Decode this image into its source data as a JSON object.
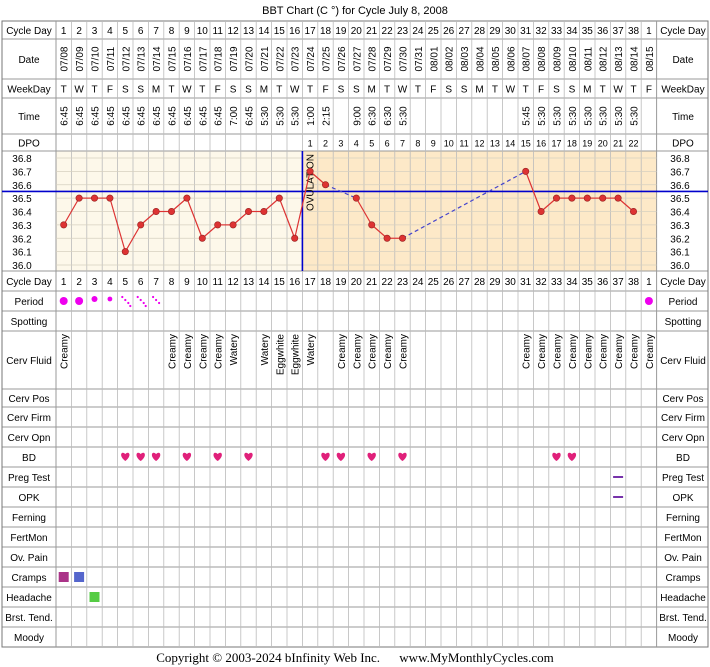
{
  "title": "BBT Chart (C °) for Cycle July 8, 2008",
  "footer": {
    "copyright": "Copyright © 2003-2024 bInfinity Web Inc.",
    "site": "www.MyMonthlyCycles.com"
  },
  "colors": {
    "grid": "#999999",
    "pre_fill": "#fdf8ea",
    "post_fill": "#fde9c8",
    "coverline": "#0000cc",
    "temp_line": "#dd3333",
    "temp_point": "#dd3333",
    "gap_line": "#4444cc",
    "period": "#ee00ee",
    "heart": "#e0207a",
    "cramps": [
      "#aa3388",
      "#5566cc"
    ],
    "headache": "#55cc44",
    "test_dash": "#7733aa",
    "header_bg": "#ffffff",
    "row_bg": "#ffffff"
  },
  "row_labels": {
    "cycle_day": "Cycle Day",
    "date": "Date",
    "weekday": "WeekDay",
    "time": "Time",
    "dpo": "DPO",
    "period": "Period",
    "spotting": "Spotting",
    "cerv_fluid": "Cerv Fluid",
    "cerv_pos": "Cerv Pos",
    "cerv_firm": "Cerv Firm",
    "cerv_opn": "Cerv Opn",
    "bd": "BD",
    "preg_test": "Preg Test",
    "opk": "OPK",
    "ferning": "Ferning",
    "fertmon": "FertMon",
    "ov_pain": "Ov. Pain",
    "cramps": "Cramps",
    "headache": "Headache",
    "brst_tend": "Brst. Tend.",
    "moody": "Moody"
  },
  "ovulation_label": "OVULATION",
  "cycle_days": [
    "1",
    "2",
    "3",
    "4",
    "5",
    "6",
    "7",
    "8",
    "9",
    "10",
    "11",
    "12",
    "13",
    "14",
    "15",
    "16",
    "17",
    "18",
    "19",
    "20",
    "21",
    "22",
    "23",
    "24",
    "25",
    "26",
    "27",
    "28",
    "29",
    "30",
    "31",
    "32",
    "33",
    "34",
    "35",
    "36",
    "37",
    "38",
    "1"
  ],
  "dates": [
    "07/08",
    "07/09",
    "07/10",
    "07/11",
    "07/12",
    "07/13",
    "07/14",
    "07/15",
    "07/16",
    "07/17",
    "07/18",
    "07/19",
    "07/20",
    "07/21",
    "07/22",
    "07/23",
    "07/24",
    "07/25",
    "07/26",
    "07/27",
    "07/28",
    "07/29",
    "07/30",
    "07/31",
    "08/01",
    "08/02",
    "08/03",
    "08/04",
    "08/05",
    "08/06",
    "08/07",
    "08/08",
    "08/09",
    "08/10",
    "08/11",
    "08/12",
    "08/13",
    "08/14",
    "08/15"
  ],
  "weekdays": [
    "T",
    "W",
    "T",
    "F",
    "S",
    "S",
    "M",
    "T",
    "W",
    "T",
    "F",
    "S",
    "S",
    "M",
    "T",
    "W",
    "T",
    "F",
    "S",
    "S",
    "M",
    "T",
    "W",
    "T",
    "F",
    "S",
    "S",
    "M",
    "T",
    "W",
    "T",
    "F",
    "S",
    "S",
    "M",
    "T",
    "W",
    "T",
    "F"
  ],
  "times": [
    "6:45",
    "6:45",
    "6:45",
    "6:45",
    "6:45",
    "6:45",
    "6:45",
    "6:45",
    "6:45",
    "6:45",
    "6:45",
    "7:00",
    "6:45",
    "5:30",
    "5:30",
    "5:30",
    "1:00",
    "2:15",
    "",
    "9:00",
    "6:30",
    "6:30",
    "5:30",
    "",
    "",
    "",
    "",
    "",
    "",
    "",
    "5:45",
    "5:30",
    "5:30",
    "5:30",
    "5:30",
    "5:30",
    "5:30",
    "5:30",
    ""
  ],
  "dpo": [
    "",
    "",
    "",
    "",
    "",
    "",
    "",
    "",
    "",
    "",
    "",
    "",
    "",
    "",
    "",
    "",
    "1",
    "2",
    "3",
    "4",
    "5",
    "6",
    "7",
    "8",
    "9",
    "10",
    "11",
    "12",
    "13",
    "14",
    "15",
    "16",
    "17",
    "18",
    "19",
    "20",
    "21",
    "22",
    ""
  ],
  "cerv_fluid": [
    "Creamy",
    "",
    "",
    "",
    "",
    "",
    "",
    "Creamy",
    "Creamy",
    "Creamy",
    "Creamy",
    "Watery",
    "",
    "Watery",
    "Eggwhite",
    "Eggwhite",
    "Watery",
    "",
    "Creamy",
    "Creamy",
    "Creamy",
    "Creamy",
    "Creamy",
    "",
    "",
    "",
    "",
    "",
    "",
    "",
    "Creamy",
    "Creamy",
    "Creamy",
    "Creamy",
    "Creamy",
    "Creamy",
    "Creamy",
    "Creamy",
    "Creamy"
  ],
  "bd_days": [
    5,
    6,
    7,
    9,
    11,
    13,
    18,
    19,
    21,
    23,
    33,
    34
  ],
  "period": {
    "heavy": [
      1,
      2,
      39
    ],
    "medium": [
      3
    ],
    "light": [
      4
    ],
    "spotting_dots": [
      5,
      6,
      7
    ]
  },
  "preg_test_days": [
    37
  ],
  "opk_days": [
    37
  ],
  "cramps_days": [
    1,
    2
  ],
  "headache_days": [
    3
  ],
  "chart_data": {
    "type": "line",
    "ylabel": "",
    "ylim": [
      36.0,
      36.8
    ],
    "y_ticks": [
      "36.8",
      "36.7",
      "36.6",
      "36.5",
      "36.4",
      "36.3",
      "36.2",
      "36.1",
      "36.0"
    ],
    "coverline": 36.55,
    "ovulation_day": 16,
    "temps": [
      36.3,
      36.5,
      36.5,
      36.5,
      36.1,
      36.3,
      36.4,
      36.4,
      36.5,
      36.2,
      36.3,
      36.3,
      36.4,
      36.4,
      36.5,
      36.2,
      36.7,
      36.6,
      null,
      36.5,
      36.3,
      36.2,
      36.2,
      null,
      null,
      null,
      null,
      null,
      null,
      null,
      36.7,
      36.4,
      36.5,
      36.5,
      36.5,
      36.5,
      36.5,
      36.4,
      null
    ]
  }
}
